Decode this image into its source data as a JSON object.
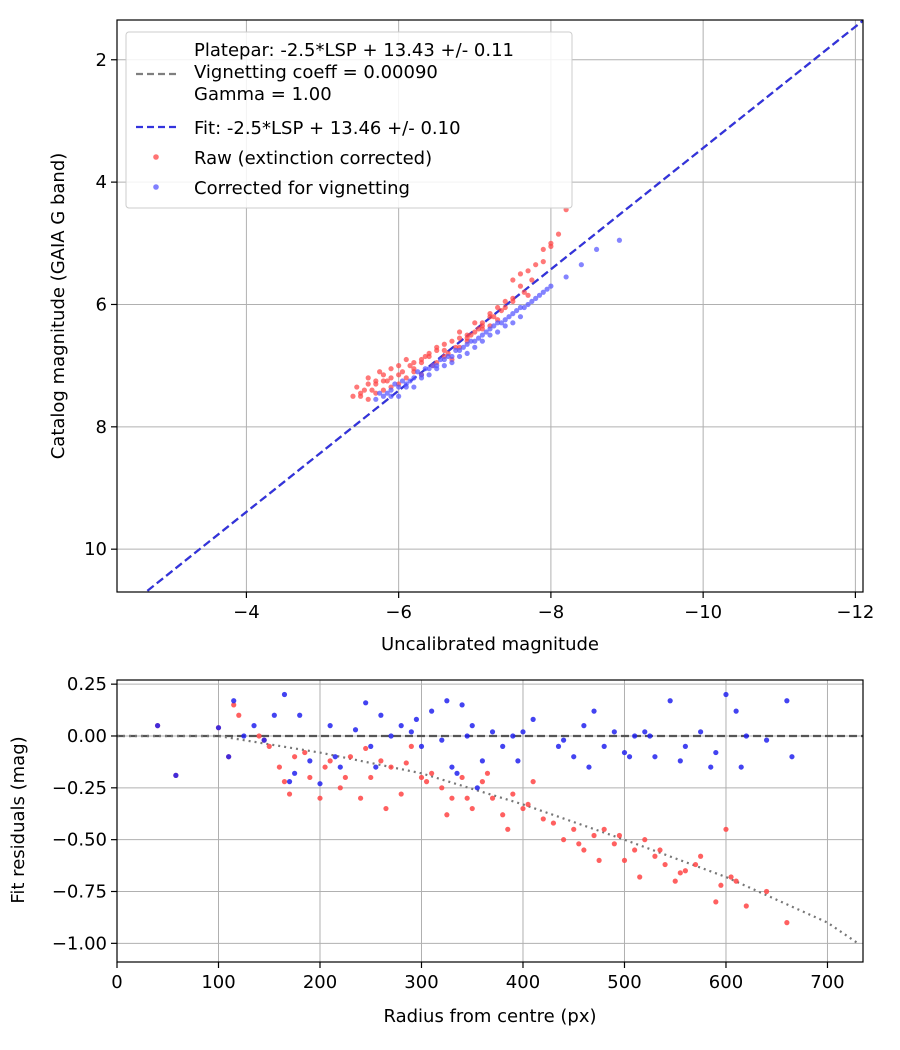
{
  "chart_data": [
    {
      "type": "scatter",
      "xlabel": "Uncalibrated magnitude",
      "ylabel": "Catalog magnitude (GAIA G band)",
      "xlim": [
        -2.3,
        -12.1
      ],
      "ylim": [
        10.7,
        1.35
      ],
      "x_inverted": true,
      "y_inverted": true,
      "xticks": [
        -4,
        -6,
        -8,
        -10,
        -12
      ],
      "xtick_labels": [
        "−4",
        "−6",
        "−8",
        "−10",
        "−12"
      ],
      "yticks": [
        2,
        4,
        6,
        8,
        10
      ],
      "ytick_labels": [
        "2",
        "4",
        "6",
        "8",
        "10"
      ],
      "grid": true,
      "legend_position": "top-left",
      "legend": [
        {
          "label": "Platepar: -2.5*LSP + 13.43 +/- 0.11\nVignetting coeff = 0.00090\nGamma = 1.00",
          "style": "dashed",
          "color": "#7f7f7f"
        },
        {
          "label": "Fit: -2.5*LSP + 13.46 +/- 0.10",
          "style": "dashed",
          "color": "#3333dd"
        },
        {
          "label": "Raw (extinction corrected)",
          "style": "marker",
          "color": "#ff4444"
        },
        {
          "label": "Corrected for vignetting",
          "style": "marker",
          "color": "#5555ff"
        }
      ],
      "lines": [
        {
          "name": "Platepar",
          "x": [
            -2.7,
            -12.1
          ],
          "y": [
            10.68,
            1.36
          ],
          "color": "#7f7f7f",
          "dash": true
        },
        {
          "name": "Fit",
          "x": [
            -2.7,
            -12.1
          ],
          "y": [
            10.68,
            1.36
          ],
          "color": "#3333dd",
          "dash": true
        }
      ],
      "series": [
        {
          "name": "Raw (extinction corrected)",
          "color": "#ff4444",
          "x": [
            -5.4,
            -5.5,
            -5.45,
            -5.6,
            -5.65,
            -5.7,
            -5.75,
            -5.8,
            -5.9,
            -6.0,
            -6.1,
            -6.2,
            -6.3,
            -6.4,
            -6.5,
            -6.6,
            -6.7,
            -6.8,
            -6.9,
            -7.0,
            -7.1,
            -7.2,
            -7.3,
            -7.4,
            -7.5,
            -7.6,
            -7.7,
            -7.8,
            -7.9,
            -8.0,
            -8.1,
            -8.2,
            -5.5,
            -5.6,
            -5.7,
            -5.8,
            -5.9,
            -6.0,
            -6.1,
            -6.2,
            -6.3,
            -6.4,
            -6.5,
            -6.6,
            -6.7,
            -6.8,
            -6.9,
            -7.0,
            -7.1,
            -7.2,
            -7.3,
            -7.5,
            -7.6,
            -7.7,
            -7.9,
            -5.6,
            -5.8,
            -6.0,
            -6.3,
            -6.6,
            -6.9,
            -7.2,
            -7.5,
            -7.75,
            -8.0,
            -5.9,
            -6.2,
            -6.5,
            -6.8,
            -7.1,
            -7.4,
            -5.55,
            -5.85,
            -6.15,
            -6.45,
            -6.75,
            -7.05,
            -7.35,
            -7.65,
            -5.7,
            -6.05,
            -6.35,
            -6.65,
            -6.95,
            -7.25
          ],
          "y": [
            7.5,
            7.45,
            7.35,
            7.2,
            7.4,
            7.3,
            7.1,
            7.25,
            7.35,
            7.0,
            7.2,
            7.05,
            6.9,
            6.8,
            6.95,
            6.75,
            6.6,
            6.7,
            6.5,
            6.45,
            6.3,
            6.15,
            6.05,
            5.95,
            5.6,
            5.5,
            5.45,
            5.35,
            5.1,
            5.0,
            4.85,
            4.45,
            7.5,
            7.3,
            7.45,
            7.15,
            7.05,
            7.3,
            6.9,
            7.1,
            7.15,
            6.85,
            6.7,
            6.85,
            6.9,
            6.55,
            6.6,
            6.3,
            6.4,
            6.2,
            6.25,
            5.95,
            5.7,
            5.85,
            5.3,
            7.55,
            7.4,
            7.15,
            6.95,
            6.65,
            6.55,
            6.35,
            5.9,
            5.6,
            5.05,
            7.2,
            6.95,
            6.75,
            6.45,
            6.35,
            6.05,
            7.4,
            7.25,
            7.0,
            7.0,
            6.7,
            6.4,
            6.1,
            5.8,
            7.25,
            7.1,
            6.85,
            6.8,
            6.5,
            6.2
          ]
        },
        {
          "name": "Corrected for vignetting",
          "color": "#5555ff",
          "x": [
            -5.7,
            -5.8,
            -5.9,
            -6.0,
            -6.1,
            -6.2,
            -6.3,
            -6.4,
            -6.5,
            -6.6,
            -6.7,
            -6.8,
            -6.9,
            -7.0,
            -7.1,
            -7.2,
            -7.3,
            -7.4,
            -7.5,
            -7.6,
            -7.7,
            -7.8,
            -7.9,
            -8.0,
            -8.2,
            -8.4,
            -8.6,
            -8.9,
            -5.75,
            -5.85,
            -5.95,
            -6.05,
            -6.15,
            -6.25,
            -6.35,
            -6.45,
            -6.55,
            -6.65,
            -6.75,
            -6.85,
            -6.95,
            -7.05,
            -7.15,
            -7.25,
            -7.35,
            -7.45,
            -7.55,
            -7.65,
            -7.75,
            -7.85,
            -7.95,
            -6.0,
            -6.2,
            -6.4,
            -6.6,
            -6.8,
            -7.0,
            -7.2,
            -7.4,
            -7.6,
            -5.9,
            -6.1,
            -6.3,
            -6.5,
            -6.7,
            -6.9,
            -7.1,
            -7.3,
            -7.5
          ],
          "y": [
            7.55,
            7.5,
            7.4,
            7.35,
            7.3,
            7.2,
            7.15,
            7.05,
            7.0,
            6.9,
            6.85,
            6.75,
            6.65,
            6.6,
            6.5,
            6.4,
            6.3,
            6.25,
            6.15,
            6.05,
            6.0,
            5.9,
            5.8,
            5.7,
            5.55,
            5.35,
            5.1,
            4.95,
            7.45,
            7.45,
            7.3,
            7.25,
            7.25,
            7.1,
            7.05,
            7.0,
            6.9,
            6.85,
            6.75,
            6.7,
            6.6,
            6.55,
            6.45,
            6.35,
            6.3,
            6.2,
            6.1,
            6.05,
            5.95,
            5.85,
            5.75,
            7.5,
            7.35,
            7.15,
            7.0,
            6.85,
            6.7,
            6.5,
            6.35,
            6.2,
            7.5,
            7.35,
            7.2,
            7.05,
            6.95,
            6.8,
            6.6,
            6.45,
            6.3
          ]
        }
      ]
    },
    {
      "type": "scatter",
      "xlabel": "Radius from centre (px)",
      "ylabel": "Fit residuals (mag)",
      "xlim": [
        0,
        735
      ],
      "ylim": [
        -1.09,
        0.27
      ],
      "xticks": [
        0,
        100,
        200,
        300,
        400,
        500,
        600,
        700
      ],
      "xtick_labels": [
        "0",
        "100",
        "200",
        "300",
        "400",
        "500",
        "600",
        "700"
      ],
      "yticks": [
        0.25,
        0,
        -0.25,
        -0.5,
        -0.75,
        -1.0
      ],
      "ytick_labels": [
        "0.25",
        "0.00",
        "−0.25",
        "−0.50",
        "−0.75",
        "−1.00"
      ],
      "grid": true,
      "lines": [
        {
          "name": "zero",
          "x": [
            0,
            735
          ],
          "y": [
            0,
            0
          ],
          "color": "#555555",
          "dash": true
        },
        {
          "name": "vignetting model",
          "x": [
            0,
            100,
            200,
            300,
            400,
            500,
            600,
            700,
            730
          ],
          "y": [
            0,
            -0.0,
            -0.08,
            -0.18,
            -0.33,
            -0.5,
            -0.68,
            -0.9,
            -1.0
          ],
          "color": "#777777",
          "dotted": true
        }
      ],
      "series": [
        {
          "name": "Raw (extinction corrected)",
          "color": "#ff4444",
          "x": [
            40,
            58,
            100,
            110,
            115,
            140,
            150,
            160,
            170,
            175,
            190,
            200,
            210,
            220,
            230,
            240,
            250,
            260,
            270,
            280,
            290,
            300,
            310,
            320,
            330,
            340,
            350,
            360,
            370,
            380,
            390,
            400,
            410,
            420,
            440,
            450,
            460,
            470,
            480,
            490,
            500,
            510,
            520,
            530,
            540,
            550,
            560,
            570,
            590,
            595,
            600,
            610,
            620,
            640,
            660,
            120,
            145,
            165,
            185,
            205,
            225,
            245,
            265,
            285,
            305,
            325,
            345,
            365,
            385,
            405,
            430,
            455,
            475,
            495,
            515,
            535,
            555,
            575,
            605
          ],
          "y": [
            0.05,
            -0.19,
            0.04,
            -0.1,
            0.15,
            0.0,
            -0.05,
            -0.15,
            -0.28,
            -0.1,
            -0.2,
            -0.3,
            -0.12,
            -0.25,
            -0.1,
            -0.3,
            -0.2,
            -0.12,
            -0.15,
            -0.28,
            -0.05,
            -0.2,
            -0.18,
            -0.25,
            -0.3,
            -0.2,
            -0.35,
            -0.22,
            -0.3,
            -0.38,
            -0.28,
            -0.35,
            -0.22,
            -0.4,
            -0.5,
            -0.45,
            -0.55,
            -0.48,
            -0.45,
            -0.52,
            -0.6,
            -0.55,
            -0.5,
            -0.58,
            -0.62,
            -0.7,
            -0.65,
            -0.62,
            -0.8,
            -0.72,
            -0.45,
            -0.7,
            -0.82,
            -0.75,
            -0.9,
            0.1,
            -0.02,
            -0.22,
            -0.08,
            -0.15,
            -0.2,
            -0.06,
            -0.35,
            -0.13,
            -0.22,
            -0.38,
            -0.3,
            -0.18,
            -0.45,
            -0.33,
            -0.42,
            -0.52,
            -0.6,
            -0.48,
            -0.68,
            -0.55,
            -0.66,
            -0.58,
            -0.68
          ]
        },
        {
          "name": "Corrected for vignetting",
          "color": "#2222ee",
          "x": [
            40,
            58,
            100,
            110,
            115,
            135,
            145,
            155,
            165,
            170,
            180,
            190,
            200,
            210,
            220,
            235,
            245,
            250,
            260,
            270,
            280,
            290,
            300,
            310,
            320,
            325,
            330,
            340,
            345,
            350,
            360,
            370,
            380,
            390,
            400,
            410,
            440,
            450,
            460,
            470,
            480,
            490,
            500,
            510,
            520,
            530,
            545,
            560,
            575,
            590,
            600,
            610,
            620,
            640,
            660,
            665,
            125,
            175,
            215,
            255,
            295,
            335,
            355,
            395,
            435,
            465,
            505,
            525,
            555,
            585,
            615
          ],
          "y": [
            0.05,
            -0.19,
            0.04,
            -0.1,
            0.17,
            0.05,
            -0.02,
            0.1,
            0.2,
            -0.22,
            0.1,
            -0.12,
            -0.23,
            0.05,
            -0.15,
            0.03,
            0.16,
            -0.05,
            0.1,
            0.0,
            0.05,
            0.02,
            -0.05,
            0.12,
            -0.02,
            0.17,
            -0.15,
            0.15,
            0.0,
            0.05,
            -0.12,
            0.02,
            -0.05,
            0.0,
            0.02,
            0.08,
            -0.02,
            -0.1,
            0.05,
            0.12,
            -0.05,
            0.02,
            -0.08,
            0.0,
            0.02,
            -0.1,
            0.17,
            -0.05,
            0.02,
            -0.08,
            0.2,
            0.12,
            0.0,
            -0.02,
            0.17,
            -0.1,
            0.0,
            -0.18,
            -0.1,
            -0.15,
            0.08,
            -0.18,
            -0.25,
            -0.12,
            -0.05,
            -0.15,
            -0.1,
            0.0,
            -0.12,
            -0.15,
            -0.15
          ]
        }
      ]
    }
  ]
}
